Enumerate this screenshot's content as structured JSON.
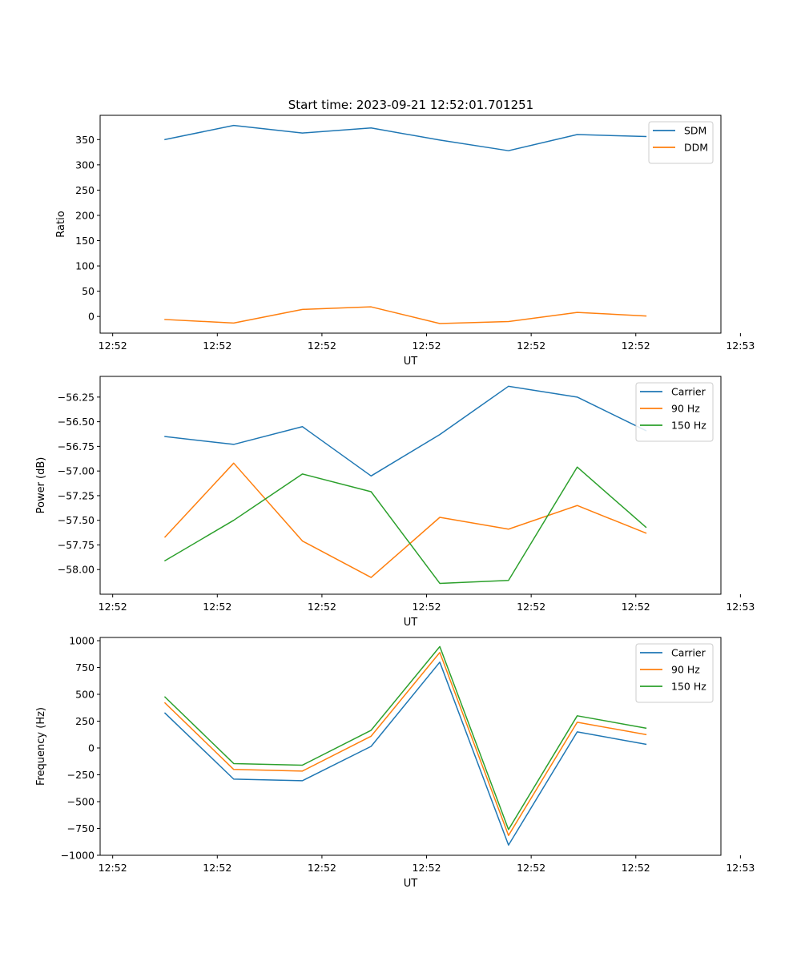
{
  "figure": {
    "title": "Start time: 2023-09-21 12:52:01.701251"
  },
  "chart_data": [
    {
      "type": "line",
      "id": "ratio",
      "ylabel": "Ratio",
      "xlabel": "UT",
      "xlim": [
        -0.18,
        8.72
      ],
      "ylim": [
        -33,
        398
      ],
      "yticks": [
        0,
        50,
        100,
        150,
        200,
        250,
        300,
        350
      ],
      "yticklabels": [
        "0",
        "50",
        "100",
        "150",
        "200",
        "250",
        "300",
        "350"
      ],
      "xticks": [
        0,
        1.5,
        3,
        4.5,
        6,
        7.5,
        9
      ],
      "xticklabels": [
        "12:52",
        "12:52",
        "12:52",
        "12:52",
        "12:52",
        "12:52",
        "12:53"
      ],
      "x": [
        0.75,
        1.735,
        2.72,
        3.705,
        4.69,
        5.675,
        6.66,
        7.645
      ],
      "legend": "top-right",
      "series": [
        {
          "name": "SDM",
          "color": "#1f77b4",
          "values": [
            350,
            378,
            363,
            373,
            349,
            328,
            360,
            356
          ]
        },
        {
          "name": "DDM",
          "color": "#ff7f0e",
          "values": [
            -6,
            -13,
            14,
            19,
            -14,
            -10,
            8,
            1
          ]
        }
      ]
    },
    {
      "type": "line",
      "id": "power",
      "ylabel": "Power (dB)",
      "xlabel": "UT",
      "xlim": [
        -0.18,
        8.72
      ],
      "ylim": [
        -58.25,
        -56.04
      ],
      "yticks": [
        -58.0,
        -57.75,
        -57.5,
        -57.25,
        -57.0,
        -56.75,
        -56.5,
        -56.25
      ],
      "yticklabels": [
        "−58.00",
        "−57.75",
        "−57.50",
        "−57.25",
        "−57.00",
        "−56.75",
        "−56.50",
        "−56.25"
      ],
      "xticks": [
        0,
        1.5,
        3,
        4.5,
        6,
        7.5,
        9
      ],
      "xticklabels": [
        "12:52",
        "12:52",
        "12:52",
        "12:52",
        "12:52",
        "12:52",
        "12:53"
      ],
      "x": [
        0.75,
        1.735,
        2.72,
        3.705,
        4.69,
        5.675,
        6.66,
        7.645
      ],
      "legend": "top-right",
      "series": [
        {
          "name": "Carrier",
          "color": "#1f77b4",
          "values": [
            -56.65,
            -56.73,
            -56.55,
            -57.05,
            -56.63,
            -56.14,
            -56.25,
            -56.59
          ]
        },
        {
          "name": "90 Hz",
          "color": "#ff7f0e",
          "values": [
            -57.67,
            -56.92,
            -57.71,
            -58.08,
            -57.47,
            -57.59,
            -57.35,
            -57.63
          ]
        },
        {
          "name": "150 Hz",
          "color": "#2ca02c",
          "values": [
            -57.91,
            -57.5,
            -57.03,
            -57.21,
            -58.14,
            -58.11,
            -56.96,
            -57.57
          ]
        }
      ]
    },
    {
      "type": "line",
      "id": "frequency",
      "ylabel": "Frequency (Hz)",
      "xlabel": "UT",
      "xlim": [
        -0.18,
        8.72
      ],
      "ylim": [
        -1000,
        1030
      ],
      "yticks": [
        -1000,
        -750,
        -500,
        -250,
        0,
        250,
        500,
        750,
        1000
      ],
      "yticklabels": [
        "−1000",
        "−750",
        "−500",
        "−250",
        "0",
        "250",
        "500",
        "750",
        "1000"
      ],
      "xticks": [
        0,
        1.5,
        3,
        4.5,
        6,
        7.5,
        9
      ],
      "xticklabels": [
        "12:52",
        "12:52",
        "12:52",
        "12:52",
        "12:52",
        "12:52",
        "12:53"
      ],
      "x": [
        0.75,
        1.735,
        2.72,
        3.705,
        4.69,
        5.675,
        6.66,
        7.645
      ],
      "legend": "top-right",
      "series": [
        {
          "name": "Carrier",
          "color": "#1f77b4",
          "values": [
            325,
            -290,
            -305,
            15,
            800,
            -905,
            150,
            35
          ]
        },
        {
          "name": "90 Hz",
          "color": "#ff7f0e",
          "values": [
            420,
            -200,
            -215,
            110,
            890,
            -815,
            240,
            125
          ]
        },
        {
          "name": "150 Hz",
          "color": "#2ca02c",
          "values": [
            475,
            -145,
            -160,
            165,
            945,
            -760,
            300,
            185
          ]
        }
      ]
    }
  ]
}
